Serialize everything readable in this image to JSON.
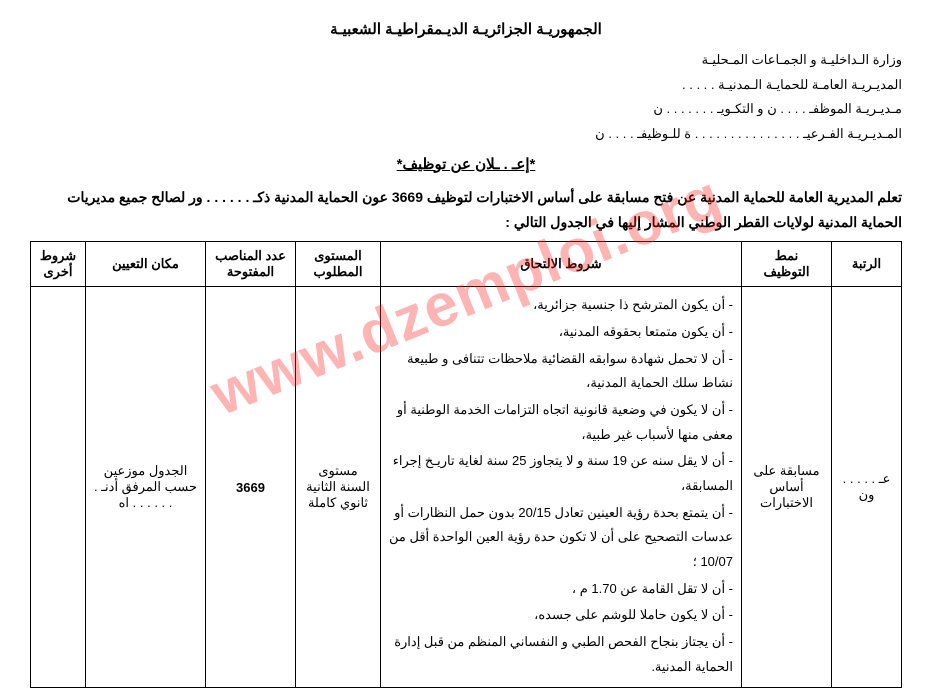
{
  "header": {
    "republic": "الجمهوريـة الجزائريـة الديـمقراطيـة الشعبيـة",
    "ministry": "وزارة الـداخليـة و الجمـاعات المـحليـة",
    "directorate": "المديـريـة العامـة للحمايـة الـمدنيـة . . . . .",
    "sub1": "مـديـريـة الموظفـ . . . . ن و التكـويـ . . . . . . . ن",
    "sub2": "المـديـريـة الفـرعيـ . . . . . . . . . . . . . . . ة للـوظيفـ . . . . ن"
  },
  "announce_title": "*إعـ . ـلان عن توظيف*",
  "intro": "تعلم المديرية العامة للحماية المدنية عن فتح مسابقة على أساس الاختبارات لتوظيف 3669 عون الحماية المدنية ذكـ . . . . . . ور لصالح جميع مديريات الحماية المدنية لولايات القطر الوطني المشار إليها في الجدول التالي :",
  "table": {
    "headers": {
      "rank": "الرتبة",
      "mode": "نمط التوظيف",
      "conditions": "شروط الالتحاق",
      "level": "المستوى المطلوب",
      "posts": "عدد المناصب المفتوحة",
      "place": "مكان التعيين",
      "other": "شروط أخرى"
    },
    "row": {
      "rank": "عـ . . . . . ون",
      "mode": "مسابقة على أساس الاختبارات",
      "conditions": [
        "- أن يكون المترشح ذا جنسية جزائرية،",
        "- أن يكون متمتعا بحقوقه المدنية،",
        "- أن لا تحمل شهادة سوابقه القضائية ملاحظات تتنافى و طبيعة نشاط سلك الحماية المدنية،",
        "- أن لا يكون في وضعية قانونية اتجاه التزامات الخدمة الوطنية أو معفى منها لأسباب غير طبية،",
        "- أن لا يقل سنه عن 19 سنة و لا يتجاوز 25 سنة لغاية تاريـخ إجراء المسابقة،",
        "- أن يتمتع بحدة رؤية العينين تعادل 20/15 بدون حمل النظارات أو عدسات التصحيح على أن لا تكون حدة رؤية العين الواحدة أقل من 10/07 ؛",
        "- أن لا تقل القامة عن 1.70 م ،",
        "- أن لا يكون حاملا للوشم على جسده،",
        "- أن يجتاز بنجاح الفحص الطبي و النفساني المنظم من قبل إدارة الحماية المدنية."
      ],
      "level": "مستوى السنة الثانية ثانوي كاملة",
      "posts": "3669",
      "place": "الجدول موزعين حسب المرفق أدنـ . . . . . . . اه",
      "other": ""
    }
  },
  "watermark": "www.dzemploi.org"
}
